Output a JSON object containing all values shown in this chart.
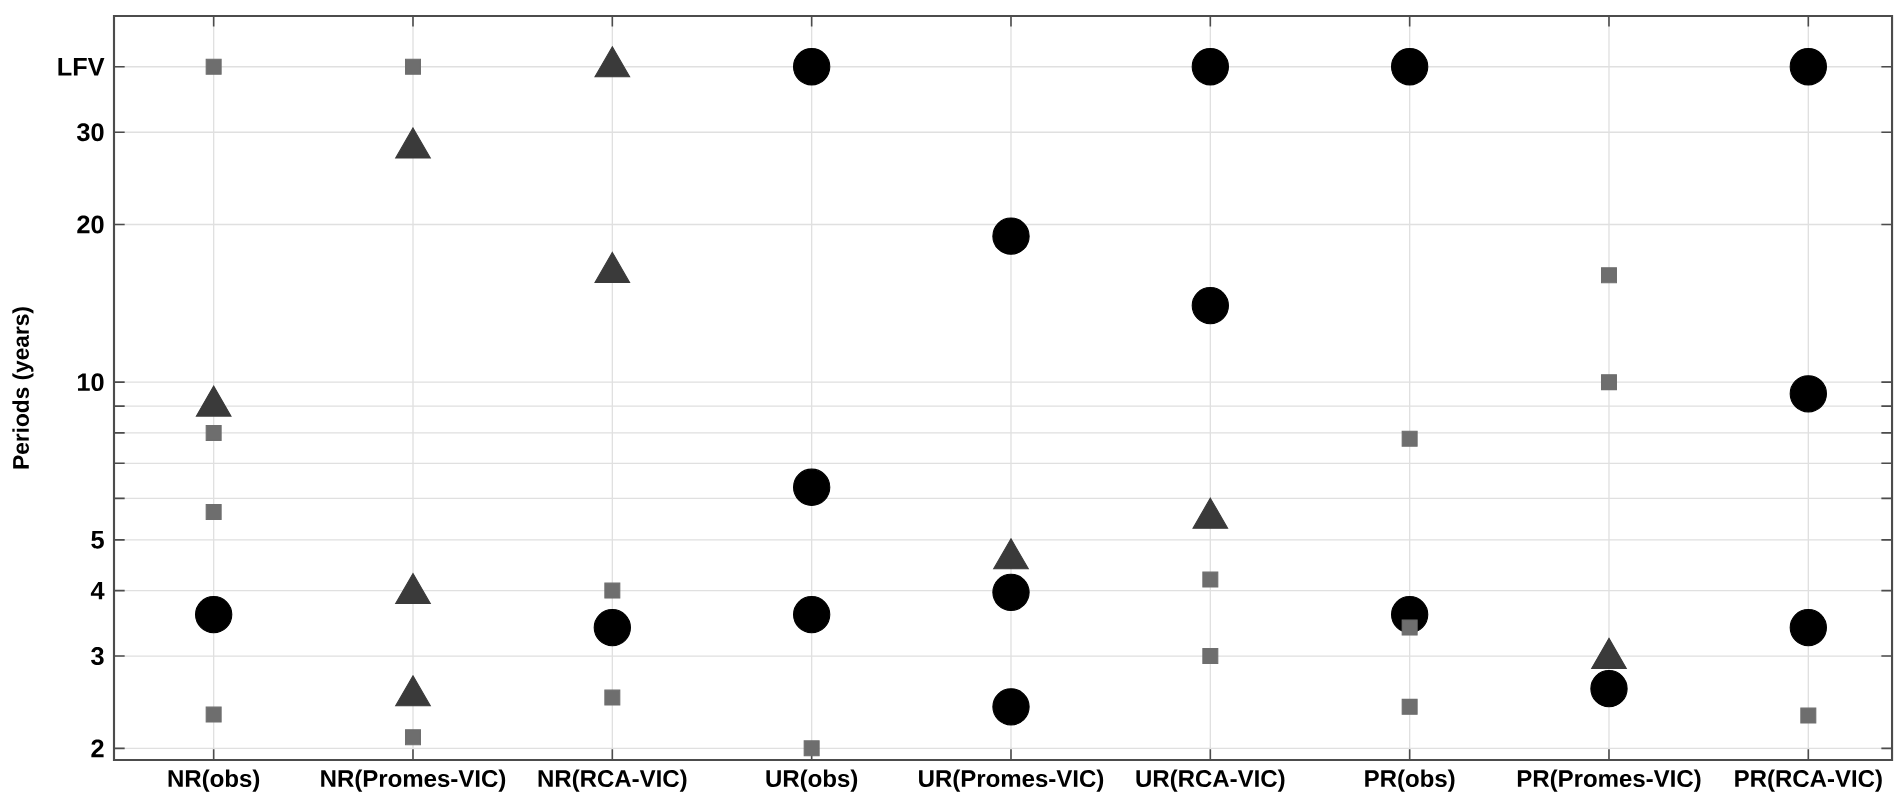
{
  "chart_data": {
    "type": "scatter",
    "ylabel": "Periods (years)",
    "categories": [
      "NR(obs)",
      "NR(Promes-VIC)",
      "NR(RCA-VIC)",
      "UR(obs)",
      "UR(Promes-VIC)",
      "UR(RCA-VIC)",
      "PR(obs)",
      "PR(Promes-VIC)",
      "PR(RCA-VIC)"
    ],
    "log": true,
    "grid": true,
    "ylim": [
      1.9,
      50
    ],
    "yticks": [
      2,
      3,
      4,
      5,
      {
        "value": 6,
        "label": null
      },
      {
        "value": 7,
        "label": null
      },
      {
        "value": 8,
        "label": null
      },
      {
        "value": 9,
        "label": null
      },
      10,
      20,
      30,
      {
        "value": 40,
        "label": "LFV"
      }
    ],
    "series": [
      {
        "marker": "triangle",
        "color": "#3a3a3a",
        "x": [
          "NR(obs)",
          "NR(Promes-VIC)",
          "NR(Promes-VIC)",
          "NR(Promes-VIC)",
          "NR(RCA-VIC)",
          "NR(RCA-VIC)",
          "UR(Promes-VIC)",
          "UR(RCA-VIC)",
          "PR(Promes-VIC)"
        ],
        "values": [
          9,
          28,
          3.95,
          2.52,
          40,
          16.2,
          4.6,
          5.5,
          2.97
        ]
      },
      {
        "marker": "circle",
        "color": "#000000",
        "x": [
          "NR(obs)",
          "NR(RCA-VIC)",
          "UR(obs)",
          "UR(obs)",
          "UR(obs)",
          "UR(Promes-VIC)",
          "UR(Promes-VIC)",
          "UR(Promes-VIC)",
          "UR(RCA-VIC)",
          "UR(RCA-VIC)",
          "PR(obs)",
          "PR(obs)",
          "PR(Promes-VIC)",
          "PR(RCA-VIC)",
          "PR(RCA-VIC)",
          "PR(RCA-VIC)"
        ],
        "values": [
          3.6,
          3.4,
          40,
          6.3,
          3.6,
          19,
          3.97,
          2.4,
          40,
          14,
          40,
          3.6,
          2.6,
          40,
          9.5,
          3.4
        ]
      },
      {
        "marker": "square",
        "color": "#6e6e6e",
        "x": [
          "NR(obs)",
          "NR(obs)",
          "NR(obs)",
          "NR(obs)",
          "NR(Promes-VIC)",
          "NR(Promes-VIC)",
          "NR(RCA-VIC)",
          "NR(RCA-VIC)",
          "UR(obs)",
          "UR(RCA-VIC)",
          "UR(RCA-VIC)",
          "PR(obs)",
          "PR(obs)",
          "PR(obs)",
          "PR(Promes-VIC)",
          "PR(Promes-VIC)",
          "PR(RCA-VIC)"
        ],
        "values": [
          40,
          8,
          5.65,
          2.32,
          40,
          2.1,
          4,
          2.5,
          2,
          4.2,
          3,
          7.8,
          3.4,
          2.4,
          16,
          10,
          2.31
        ]
      }
    ]
  }
}
